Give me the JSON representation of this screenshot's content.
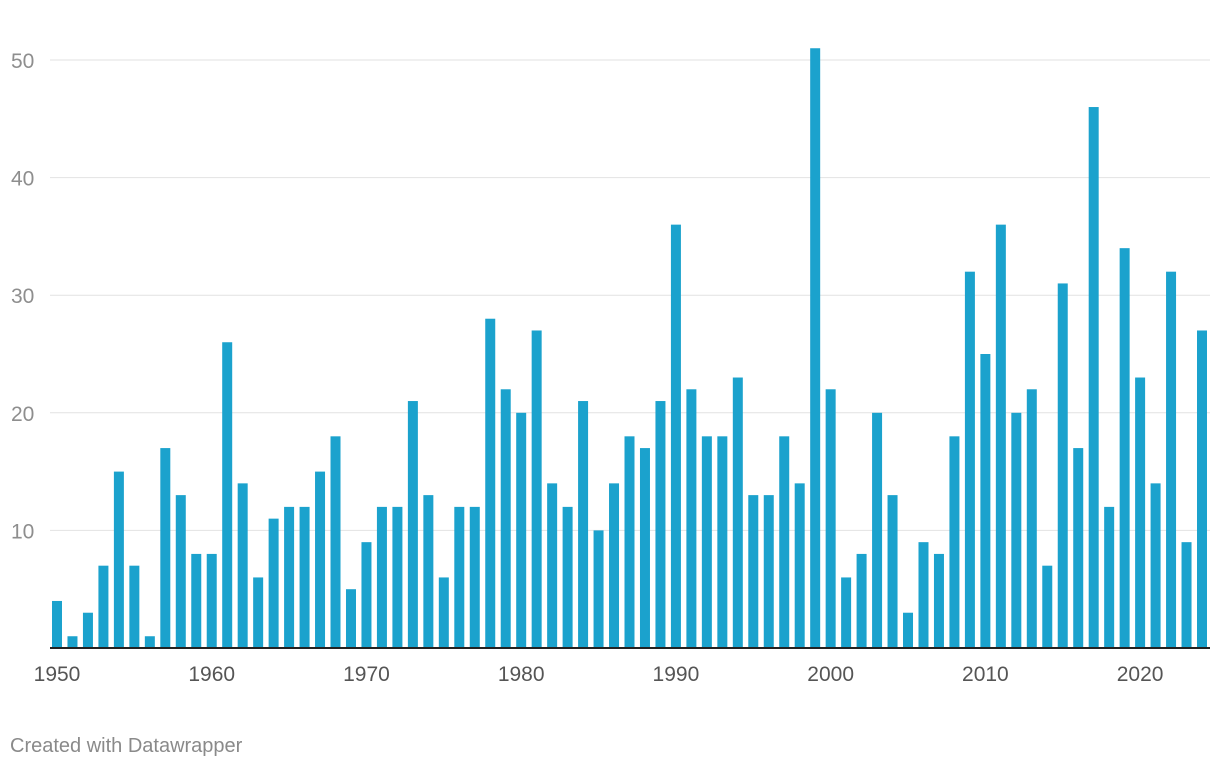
{
  "chart_data": {
    "type": "bar",
    "title": "",
    "xlabel": "",
    "ylabel": "",
    "x": [
      1950,
      1951,
      1952,
      1953,
      1954,
      1955,
      1956,
      1957,
      1958,
      1959,
      1960,
      1961,
      1962,
      1963,
      1964,
      1965,
      1966,
      1967,
      1968,
      1969,
      1970,
      1971,
      1972,
      1973,
      1974,
      1975,
      1976,
      1977,
      1978,
      1979,
      1980,
      1981,
      1982,
      1983,
      1984,
      1985,
      1986,
      1987,
      1988,
      1989,
      1990,
      1991,
      1992,
      1993,
      1994,
      1995,
      1996,
      1997,
      1998,
      1999,
      2000,
      2001,
      2002,
      2003,
      2004,
      2005,
      2006,
      2007,
      2008,
      2009,
      2010,
      2011,
      2012,
      2013,
      2014,
      2015,
      2016,
      2017,
      2018,
      2019,
      2020,
      2021,
      2022,
      2023,
      2024
    ],
    "values": [
      4,
      1,
      3,
      7,
      15,
      7,
      1,
      17,
      13,
      8,
      8,
      26,
      14,
      6,
      11,
      12,
      12,
      15,
      18,
      5,
      9,
      12,
      12,
      21,
      13,
      6,
      12,
      12,
      28,
      22,
      20,
      27,
      14,
      12,
      21,
      10,
      14,
      18,
      17,
      21,
      36,
      22,
      18,
      18,
      23,
      13,
      13,
      18,
      14,
      51,
      22,
      6,
      8,
      20,
      13,
      3,
      9,
      8,
      18,
      32,
      25,
      36,
      20,
      22,
      7,
      31,
      17,
      46,
      12,
      34,
      23,
      14,
      32,
      9,
      27
    ],
    "ylim": [
      0,
      54
    ],
    "y_ticks": [
      "10",
      "20",
      "30",
      "40",
      "50"
    ],
    "x_ticks": [
      "1950",
      "1960",
      "1970",
      "1980",
      "1990",
      "2000",
      "2010",
      "2020"
    ],
    "grid": true,
    "colors": {
      "bar": "#1ba2cd",
      "grid": "#e2e2e2",
      "axis": "#222222",
      "tick_text": "#8e8e8e",
      "x_tick_text": "#555555"
    }
  },
  "footer": {
    "credit": "Created with Datawrapper"
  }
}
